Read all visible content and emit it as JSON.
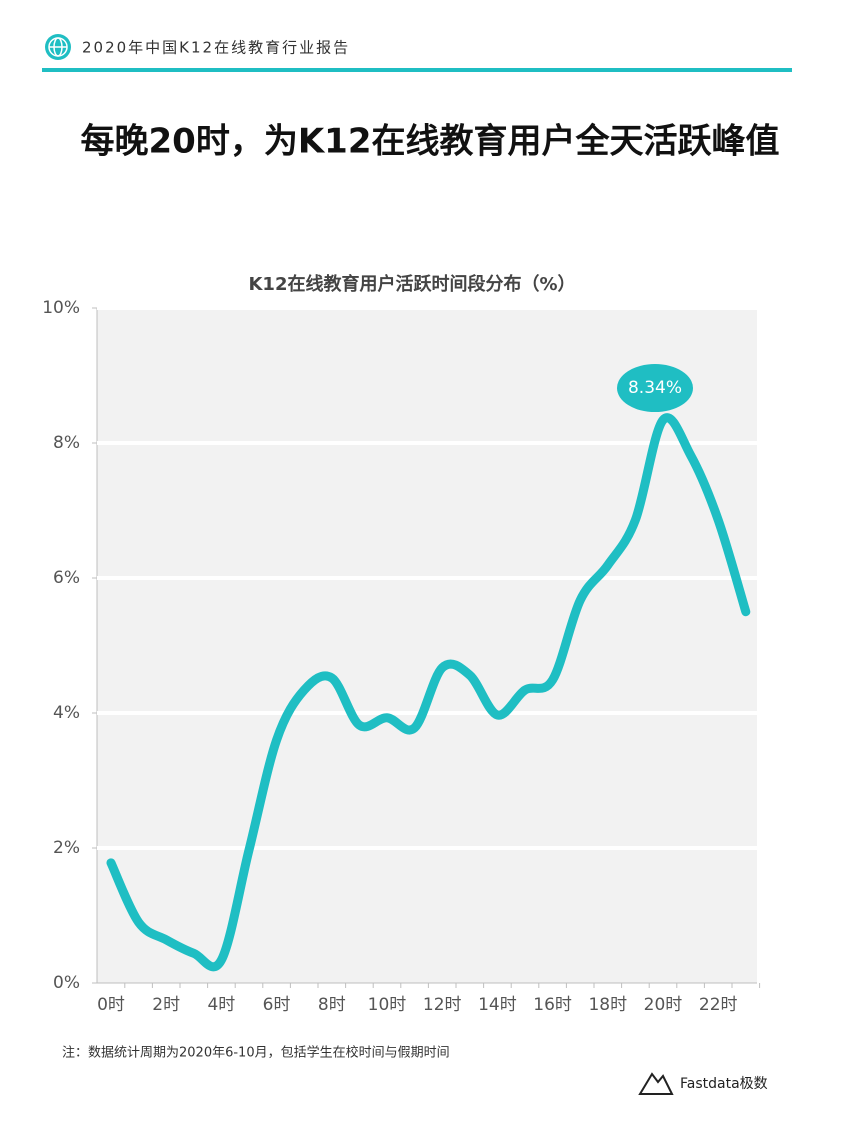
{
  "header": {
    "report": "2020年中国K12在线教育行业报告",
    "headline": "每晚20时，为K12在线教育用户全天活跃峰值"
  },
  "chart_data": {
    "type": "line",
    "title": "K12在线教育用户活跃时间段分布（%）",
    "categories": [
      "0时",
      null,
      "2时",
      null,
      "4时",
      null,
      "6时",
      null,
      "8时",
      null,
      "10时",
      null,
      "12时",
      null,
      "14时",
      null,
      "16时",
      null,
      "18时",
      null,
      "20时",
      null,
      "22时",
      null
    ],
    "values": [
      1.78,
      0.9,
      0.64,
      0.44,
      0.34,
      1.97,
      3.6,
      4.34,
      4.52,
      3.82,
      3.93,
      3.78,
      4.67,
      4.56,
      3.97,
      4.34,
      4.49,
      5.67,
      6.19,
      6.86,
      8.34,
      7.82,
      6.86,
      5.5
    ],
    "value_labels": [
      null,
      null,
      null,
      null,
      null,
      null,
      null,
      null,
      null,
      null,
      null,
      null,
      null,
      null,
      null,
      null,
      null,
      null,
      null,
      null,
      "8.34%",
      null,
      null,
      null
    ],
    "color": "#1fbec3",
    "ylim": [
      0,
      10
    ],
    "yticks": [
      {
        "value": 0,
        "label": "0%"
      },
      {
        "value": 2,
        "label": "2%"
      },
      {
        "value": 4,
        "label": "4%"
      },
      {
        "value": 6,
        "label": "6%"
      },
      {
        "value": 8,
        "label": "8%"
      },
      {
        "value": 10,
        "label": "10%"
      }
    ],
    "grid": true
  },
  "footnote": "注：数据统计周期为2020年6-10月，包括学生在校时间与假期时间",
  "source": "Fastdata极数"
}
